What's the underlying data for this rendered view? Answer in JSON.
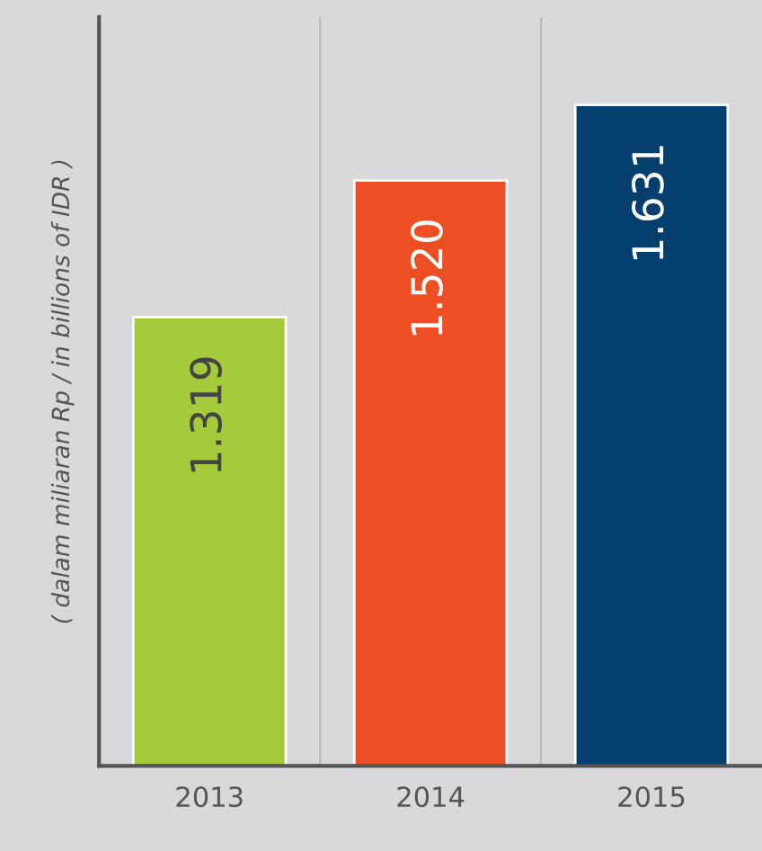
{
  "chart_data": {
    "type": "bar",
    "ylabel": "( dalam miliaran Rp / in billions of IDR )",
    "categories": [
      "2013",
      "2014",
      "2015"
    ],
    "values": [
      1319,
      1520,
      1631
    ],
    "value_labels": [
      "1.319",
      "1.520",
      "1.631"
    ],
    "colors": [
      "#a6cb3a",
      "#ee4e23",
      "#053f6e"
    ],
    "ylim": [
      660,
      1760
    ],
    "grid": "x",
    "tick_labels": "x",
    "legend": false
  }
}
